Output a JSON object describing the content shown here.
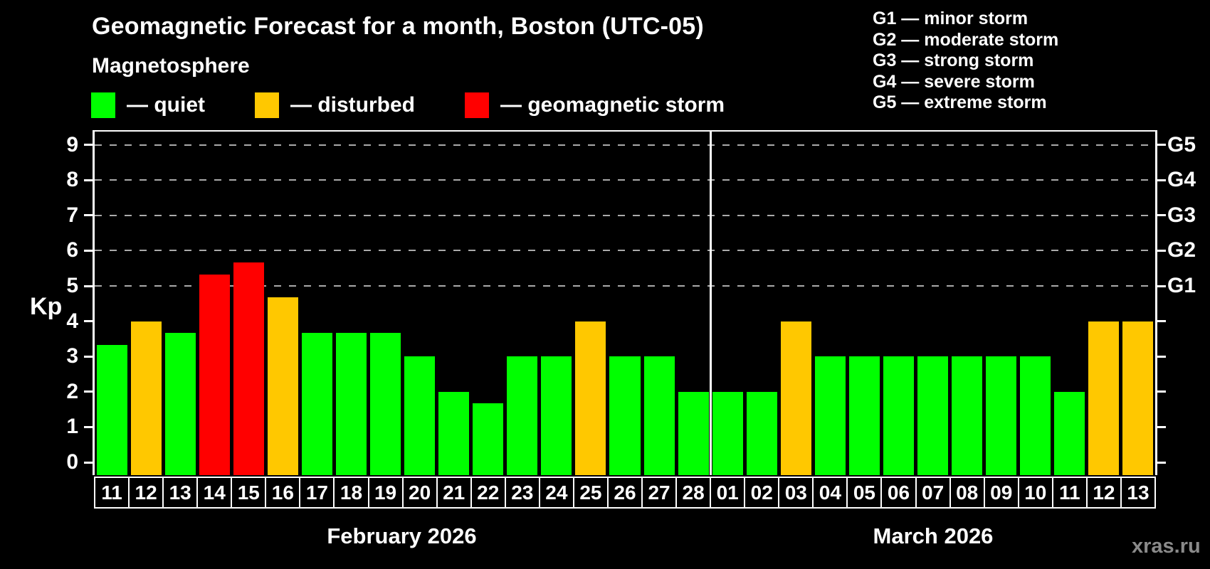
{
  "title": "Geomagnetic Forecast for a month, Boston (UTC-05)",
  "subtitle": "Magnetosphere",
  "legend": [
    {
      "label": "— quiet",
      "status": "quiet",
      "color": "#00ff00"
    },
    {
      "label": "— disturbed",
      "status": "disturbed",
      "color": "#ffc800"
    },
    {
      "label": "— geomagnetic storm",
      "status": "storm",
      "color": "#ff0000"
    }
  ],
  "g_scale_legend": [
    "G1 — minor storm",
    "G2 — moderate storm",
    "G3 — strong storm",
    "G4 — severe storm",
    "G5 — extreme storm"
  ],
  "watermark": "xras.ru",
  "chart_data": {
    "type": "bar",
    "title": "Geomagnetic Forecast for a month, Boston (UTC-05)",
    "subtitle": "Magnetosphere",
    "ylabel": "Kp",
    "ylim": [
      0,
      9.75
    ],
    "y_ticks": [
      0,
      1,
      2,
      3,
      4,
      5,
      6,
      7,
      8,
      9
    ],
    "gridlines_at": [
      5,
      6,
      7,
      8,
      9
    ],
    "grid": "dashed",
    "legend_position": "top",
    "right_axis": [
      {
        "level": 5,
        "label": "G1"
      },
      {
        "level": 6,
        "label": "G2"
      },
      {
        "level": 7,
        "label": "G3"
      },
      {
        "level": 8,
        "label": "G4"
      },
      {
        "level": 9,
        "label": "G5"
      }
    ],
    "color_key": {
      "quiet": "#00ff00",
      "disturbed": "#ffc800",
      "storm": "#ff0000"
    },
    "months": [
      {
        "label": "February 2026",
        "days": [
          "11",
          "12",
          "13",
          "14",
          "15",
          "16",
          "17",
          "18",
          "19",
          "20",
          "21",
          "22",
          "23",
          "24",
          "25",
          "26",
          "27",
          "28"
        ],
        "values": [
          3.33,
          4,
          3.67,
          5.33,
          5.67,
          4.67,
          3.67,
          3.67,
          3.67,
          3,
          2,
          1.67,
          3,
          3,
          4,
          3,
          3,
          2
        ],
        "status": [
          "quiet",
          "disturbed",
          "quiet",
          "storm",
          "storm",
          "disturbed",
          "quiet",
          "quiet",
          "quiet",
          "quiet",
          "quiet",
          "quiet",
          "quiet",
          "quiet",
          "disturbed",
          "quiet",
          "quiet",
          "quiet"
        ]
      },
      {
        "label": "March 2026",
        "days": [
          "01",
          "02",
          "03",
          "04",
          "05",
          "06",
          "07",
          "08",
          "09",
          "10",
          "11",
          "12",
          "13"
        ],
        "values": [
          2,
          2,
          4,
          3,
          3,
          3,
          3,
          3,
          3,
          3,
          2,
          4,
          4
        ],
        "status": [
          "quiet",
          "quiet",
          "disturbed",
          "quiet",
          "quiet",
          "quiet",
          "quiet",
          "quiet",
          "quiet",
          "quiet",
          "quiet",
          "disturbed",
          "disturbed"
        ]
      }
    ]
  }
}
